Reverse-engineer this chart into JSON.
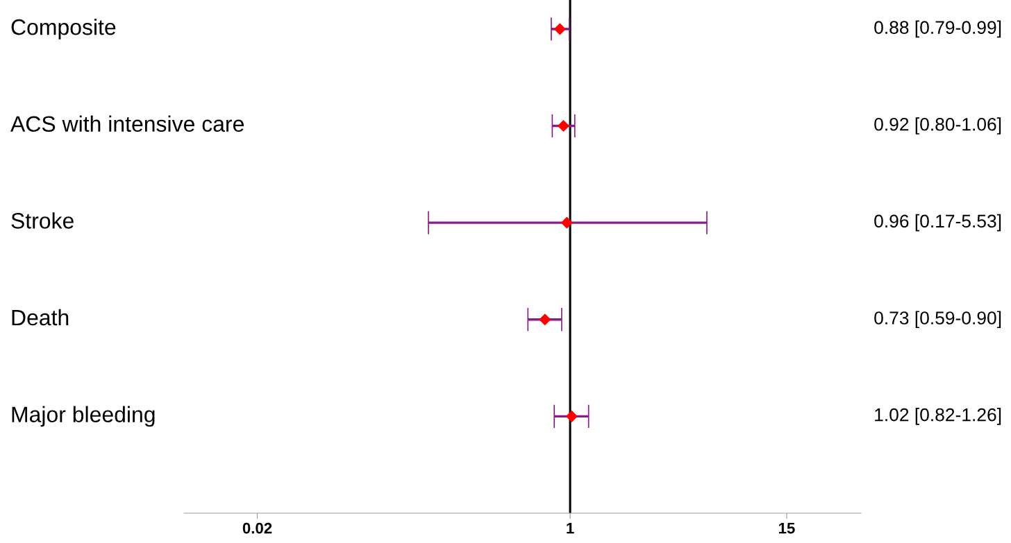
{
  "chart_data": {
    "type": "scatter",
    "orientation": "horizontal",
    "categories": [
      "Composite",
      "ACS with intensive care",
      "Stroke",
      "Death",
      "Major bleeding"
    ],
    "series": [
      {
        "color": "#ff0000",
        "values": [
          0.88,
          0.92,
          0.96,
          0.73,
          1.02
        ],
        "errors": [
          [
            0.79,
            0.99
          ],
          [
            0.8,
            1.06
          ],
          [
            0.17,
            5.53
          ],
          [
            0.59,
            0.9
          ],
          [
            0.82,
            1.26
          ]
        ],
        "value_labels": [
          "0.88 [0.79-0.99]",
          "0.92 [0.80-1.06]",
          "0.96 [0.17-5.53]",
          "0.73 [0.59-0.90]",
          "1.02 [0.82-1.26]"
        ]
      }
    ],
    "log": "x",
    "xlim": [
      0.008,
      38
    ],
    "xticks": [
      0.02,
      1,
      15
    ],
    "ref_lines": [
      {
        "axis": "x",
        "value": 1,
        "color": "#000000"
      }
    ],
    "marker": "diamond",
    "grid": false
  }
}
